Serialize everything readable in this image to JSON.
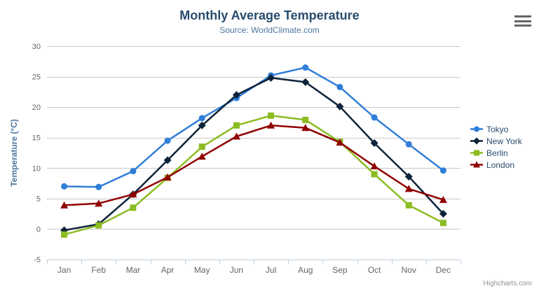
{
  "chart": {
    "title": "Monthly Average Temperature",
    "subtitle": "Source: WorldClimate.com"
  },
  "credits": {
    "text": "Highcharts.com"
  },
  "context_menu": {
    "icon": "hamburger-menu-icon"
  },
  "colors": {
    "title": "#274b6d",
    "subtitle": "#4d759e",
    "axis_title": "#4d759e",
    "axis_labels": "#666666",
    "grid": "#c8c8c8",
    "axis_line": "#c0d0e0",
    "tick": "#c0d0e0",
    "legend_text": "#274b6d",
    "credits": "#909090",
    "menu_icon": "#666666",
    "background": "#ffffff"
  },
  "chart_data": {
    "type": "line",
    "title": "Monthly Average Temperature",
    "subtitle": "Source: WorldClimate.com",
    "xlabel": "",
    "ylabel": "Temperature (°C)",
    "ylim": [
      -5,
      30
    ],
    "yticks": [
      -5,
      0,
      5,
      10,
      15,
      20,
      25,
      30
    ],
    "grid": true,
    "legend_position": "right",
    "categories": [
      "Jan",
      "Feb",
      "Mar",
      "Apr",
      "May",
      "Jun",
      "Jul",
      "Aug",
      "Sep",
      "Oct",
      "Nov",
      "Dec"
    ],
    "series": [
      {
        "name": "Tokyo",
        "color": "#2f7ed8",
        "marker": "circle",
        "values": [
          7.0,
          6.9,
          9.5,
          14.5,
          18.2,
          21.5,
          25.2,
          26.5,
          23.3,
          18.3,
          13.9,
          9.6
        ]
      },
      {
        "name": "New York",
        "color": "#0d233a",
        "marker": "diamond",
        "values": [
          -0.2,
          0.8,
          5.7,
          11.3,
          17.0,
          22.0,
          24.8,
          24.1,
          20.1,
          14.1,
          8.6,
          2.5
        ]
      },
      {
        "name": "Berlin",
        "color": "#8bbc21",
        "marker": "square",
        "values": [
          -0.9,
          0.6,
          3.5,
          8.4,
          13.5,
          17.0,
          18.6,
          17.9,
          14.3,
          9.0,
          3.9,
          1.0
        ]
      },
      {
        "name": "London",
        "color": "#910000",
        "marker": "triangle",
        "values": [
          3.9,
          4.2,
          5.7,
          8.5,
          11.9,
          15.2,
          17.0,
          16.6,
          14.2,
          10.3,
          6.6,
          4.8
        ]
      }
    ]
  }
}
